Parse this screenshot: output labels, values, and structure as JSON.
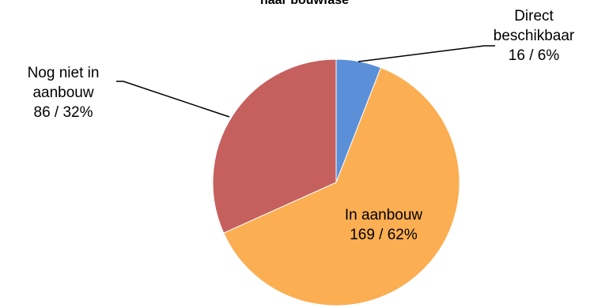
{
  "chart_data": {
    "type": "pie",
    "title": "naar bouwfase",
    "slices": [
      {
        "label": "Direct beschikbaar",
        "value": 16,
        "percent": "6%",
        "color": "#5B8FD8",
        "label_lines": [
          "Direct",
          "beschikbaar",
          "16 / 6%"
        ]
      },
      {
        "label": "In aanbouw",
        "value": 169,
        "percent": "62%",
        "color": "#FBAE52",
        "label_lines": [
          "In aanbouw",
          "169 / 62%"
        ]
      },
      {
        "label": "Nog niet in aanbouw",
        "value": 86,
        "percent": "32%",
        "color": "#C5605E",
        "label_lines": [
          "Nog niet in",
          "aanbouw",
          "86 / 32%"
        ]
      }
    ]
  }
}
